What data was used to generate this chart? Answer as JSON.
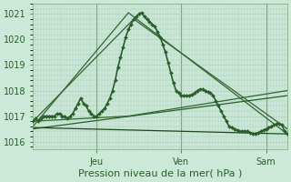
{
  "xlabel": "Pression niveau de la mer( hPa )",
  "bg_color": "#cce8d8",
  "grid_color": "#a8c8b8",
  "ylim": [
    1015.7,
    1021.4
  ],
  "yticks": [
    1016,
    1017,
    1018,
    1019,
    1020,
    1021
  ],
  "xlim": [
    0,
    288
  ],
  "day_labels": [
    "Jeu",
    "Ven",
    "Sam"
  ],
  "day_positions": [
    72,
    168,
    264
  ],
  "series": [
    {
      "x": [
        0,
        3,
        6,
        9,
        12,
        15,
        18,
        21,
        24,
        27,
        30,
        33,
        36,
        39,
        42,
        45,
        48,
        51,
        54,
        57,
        60,
        63,
        66,
        69,
        72,
        75,
        78,
        81,
        84,
        87,
        90,
        93,
        96,
        99,
        102,
        105,
        108,
        111,
        114,
        117,
        120,
        123,
        126,
        129,
        132,
        135,
        138,
        141,
        144,
        147,
        150,
        153,
        156,
        159,
        162,
        165,
        168,
        171,
        174,
        177,
        180,
        183,
        186,
        189,
        192,
        195,
        198,
        201,
        204,
        207,
        210,
        213,
        216,
        219,
        222,
        225,
        228,
        231,
        234,
        237,
        240,
        243,
        246,
        249,
        252,
        255,
        258,
        261,
        264,
        267,
        270,
        273,
        276,
        279,
        282,
        285,
        288
      ],
      "y": [
        1016.8,
        1016.9,
        1016.8,
        1016.9,
        1017.0,
        1017.0,
        1017.0,
        1017.0,
        1017.0,
        1017.1,
        1017.1,
        1017.0,
        1017.0,
        1016.9,
        1017.0,
        1017.1,
        1017.3,
        1017.5,
        1017.7,
        1017.5,
        1017.4,
        1017.2,
        1017.1,
        1017.0,
        1017.0,
        1017.1,
        1017.2,
        1017.3,
        1017.5,
        1017.7,
        1018.0,
        1018.4,
        1018.9,
        1019.3,
        1019.7,
        1020.1,
        1020.4,
        1020.6,
        1020.8,
        1020.9,
        1021.0,
        1021.05,
        1020.9,
        1020.8,
        1020.7,
        1020.6,
        1020.5,
        1020.3,
        1020.1,
        1019.8,
        1019.5,
        1019.1,
        1018.7,
        1018.3,
        1018.0,
        1017.9,
        1017.8,
        1017.8,
        1017.8,
        1017.8,
        1017.85,
        1017.9,
        1018.0,
        1018.05,
        1018.05,
        1018.0,
        1017.95,
        1017.9,
        1017.8,
        1017.6,
        1017.4,
        1017.2,
        1017.0,
        1016.8,
        1016.6,
        1016.55,
        1016.5,
        1016.45,
        1016.4,
        1016.4,
        1016.4,
        1016.4,
        1016.35,
        1016.3,
        1016.3,
        1016.35,
        1016.4,
        1016.45,
        1016.5,
        1016.55,
        1016.6,
        1016.65,
        1016.7,
        1016.7,
        1016.65,
        1016.4,
        1016.3
      ],
      "color": "#2a5e2a",
      "lw": 1.2,
      "marker": "D",
      "ms": 2.0
    },
    {
      "x": [
        0,
        108,
        288
      ],
      "y": [
        1016.6,
        1021.05,
        1016.3
      ],
      "color": "#336633",
      "lw": 0.9,
      "marker": null
    },
    {
      "x": [
        0,
        114,
        288
      ],
      "y": [
        1016.8,
        1020.8,
        1016.5
      ],
      "color": "#336633",
      "lw": 0.9,
      "marker": null
    },
    {
      "x": [
        0,
        288
      ],
      "y": [
        1016.5,
        1017.8
      ],
      "color": "#2a5e2a",
      "lw": 0.9,
      "marker": null
    },
    {
      "x": [
        0,
        108,
        288
      ],
      "y": [
        1016.8,
        1017.0,
        1018.0
      ],
      "color": "#336633",
      "lw": 0.9,
      "marker": null
    },
    {
      "x": [
        0,
        288
      ],
      "y": [
        1016.55,
        1016.3
      ],
      "color": "#1a4a1a",
      "lw": 0.9,
      "marker": null
    }
  ]
}
